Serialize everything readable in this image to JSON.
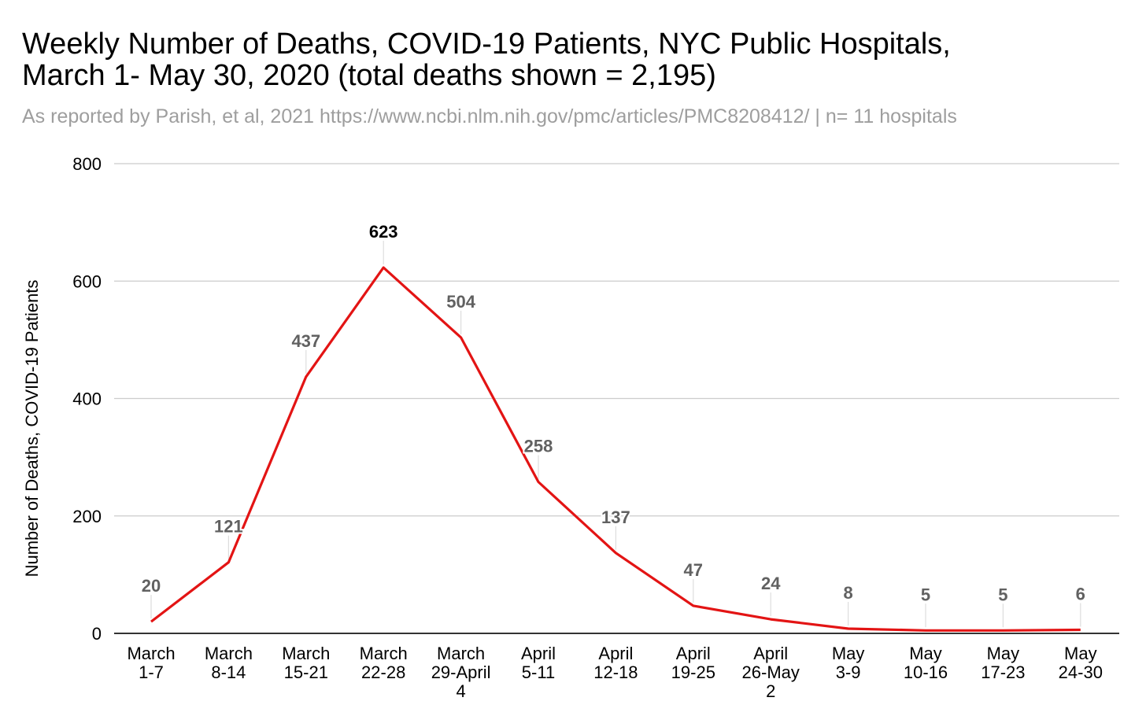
{
  "title_lines": [
    "Weekly Number of Deaths, COVID-19 Patients, NYC Public Hospitals,",
    "March 1- May 30, 2020 (total deaths shown = 2,195)"
  ],
  "subtitle": "As reported by Parish, et al, 2021 https://www.ncbi.nlm.nih.gov/pmc/articles/PMC8208412/ | n= 11 hospitals",
  "colors": {
    "line": "#e31414",
    "grid": "#cccccc",
    "axis": "#333333",
    "data_label": "#616161",
    "peak_label": "#000000"
  },
  "chart_data": {
    "type": "line",
    "title": "Weekly Number of Deaths, COVID-19 Patients, NYC Public Hospitals, March 1- May 30, 2020 (total deaths shown = 2,195)",
    "subtitle": "As reported by Parish, et al, 2021 https://www.ncbi.nlm.nih.gov/pmc/articles/PMC8208412/ | n= 11 hospitals",
    "xlabel": "",
    "ylabel": "Number of Deaths, COVID-19 Patients",
    "ylim": [
      0,
      800
    ],
    "yticks": [
      0,
      200,
      400,
      600,
      800
    ],
    "grid": true,
    "legend": "none",
    "categories": [
      [
        "March",
        "1-7"
      ],
      [
        "March",
        "8-14"
      ],
      [
        "March",
        "15-21"
      ],
      [
        "March",
        "22-28"
      ],
      [
        "March",
        "29-April",
        "4"
      ],
      [
        "April",
        "5-11"
      ],
      [
        "April",
        "12-18"
      ],
      [
        "April",
        "19-25"
      ],
      [
        "April",
        "26-May",
        "2"
      ],
      [
        "May",
        "3-9"
      ],
      [
        "May",
        "10-16"
      ],
      [
        "May",
        "17-23"
      ],
      [
        "May",
        "24-30"
      ]
    ],
    "values": [
      20,
      121,
      437,
      623,
      504,
      258,
      137,
      47,
      24,
      8,
      5,
      5,
      6
    ],
    "peak_index": 3
  }
}
